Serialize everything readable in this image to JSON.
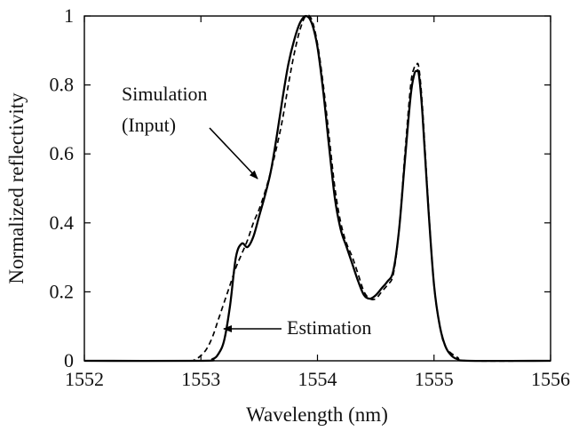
{
  "chart_data": {
    "type": "line",
    "xlabel": "Wavelength (nm)",
    "ylabel": "Normalized reflectivity",
    "xlim": [
      1552,
      1556
    ],
    "ylim": [
      0,
      1
    ],
    "xticks": [
      1552,
      1553,
      1554,
      1555,
      1556
    ],
    "yticks": [
      0,
      0.2,
      0.4,
      0.6,
      0.8,
      1
    ],
    "ytick_labels": [
      "0",
      "0.2",
      "0.4",
      "0.6",
      "0.8",
      "1"
    ],
    "grid": false,
    "series": [
      {
        "name": "Estimation",
        "style": "solid",
        "x": [
          1552.0,
          1553.0,
          1553.1,
          1553.15,
          1553.2,
          1553.25,
          1553.3,
          1553.35,
          1553.4,
          1553.45,
          1553.5,
          1553.55,
          1553.6,
          1553.65,
          1553.7,
          1553.75,
          1553.8,
          1553.85,
          1553.9,
          1553.95,
          1554.0,
          1554.05,
          1554.1,
          1554.15,
          1554.2,
          1554.25,
          1554.3,
          1554.35,
          1554.4,
          1554.45,
          1554.5,
          1554.55,
          1554.6,
          1554.65,
          1554.7,
          1554.75,
          1554.8,
          1554.83,
          1554.85,
          1554.87,
          1554.9,
          1554.95,
          1555.0,
          1555.05,
          1555.1,
          1555.15,
          1555.2,
          1555.3,
          1556.0
        ],
        "y": [
          0.0,
          0.0,
          0.005,
          0.02,
          0.06,
          0.16,
          0.3,
          0.34,
          0.33,
          0.36,
          0.42,
          0.48,
          0.55,
          0.65,
          0.76,
          0.86,
          0.93,
          0.98,
          1.0,
          0.98,
          0.91,
          0.78,
          0.62,
          0.47,
          0.38,
          0.33,
          0.28,
          0.23,
          0.19,
          0.18,
          0.19,
          0.21,
          0.23,
          0.26,
          0.38,
          0.58,
          0.77,
          0.83,
          0.84,
          0.83,
          0.72,
          0.45,
          0.22,
          0.1,
          0.04,
          0.015,
          0.005,
          0.0,
          0.0
        ]
      },
      {
        "name": "Simulation (Input)",
        "style": "dashed",
        "x": [
          1552.0,
          1552.85,
          1552.95,
          1553.0,
          1553.05,
          1553.1,
          1553.15,
          1553.2,
          1553.25,
          1553.3,
          1553.35,
          1553.4,
          1553.45,
          1553.5,
          1553.55,
          1553.6,
          1553.65,
          1553.7,
          1553.75,
          1553.8,
          1553.85,
          1553.9,
          1553.95,
          1554.0,
          1554.05,
          1554.1,
          1554.15,
          1554.2,
          1554.25,
          1554.3,
          1554.35,
          1554.4,
          1554.45,
          1554.5,
          1554.55,
          1554.6,
          1554.65,
          1554.7,
          1554.75,
          1554.8,
          1554.83,
          1554.85,
          1554.87,
          1554.9,
          1554.95,
          1555.0,
          1555.05,
          1555.1,
          1555.2,
          1555.3,
          1556.0
        ],
        "y": [
          0.0,
          0.0,
          0.005,
          0.015,
          0.035,
          0.07,
          0.12,
          0.17,
          0.22,
          0.27,
          0.31,
          0.35,
          0.4,
          0.44,
          0.49,
          0.55,
          0.62,
          0.7,
          0.8,
          0.89,
          0.96,
          1.0,
          0.99,
          0.92,
          0.8,
          0.65,
          0.5,
          0.4,
          0.34,
          0.3,
          0.25,
          0.2,
          0.18,
          0.18,
          0.2,
          0.22,
          0.25,
          0.38,
          0.6,
          0.8,
          0.85,
          0.86,
          0.85,
          0.74,
          0.46,
          0.22,
          0.1,
          0.04,
          0.01,
          0.0,
          0.0
        ]
      }
    ],
    "annotations": [
      {
        "id": "simulation",
        "lines": [
          "Simulation",
          "(Input)"
        ]
      },
      {
        "id": "estimation",
        "lines": [
          "Estimation"
        ]
      }
    ]
  }
}
